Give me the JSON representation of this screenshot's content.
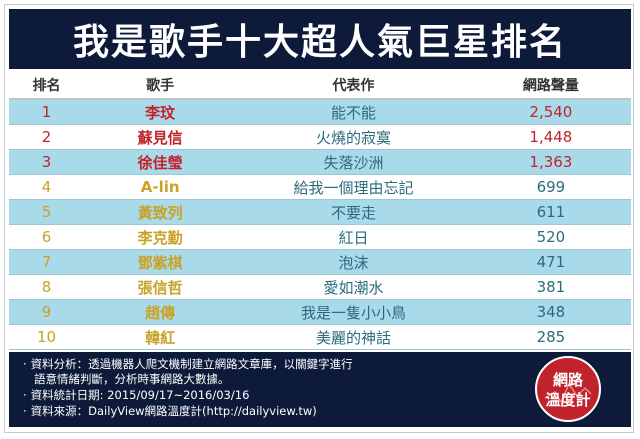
{
  "title": "我是歌手十大超人氣巨星排名",
  "columns": [
    "排名",
    "歌手",
    "代表作",
    "網路聲量"
  ],
  "rows": [
    {
      "rank": "1",
      "singer": "李玟",
      "song": "能不能",
      "volume": "2,540"
    },
    {
      "rank": "2",
      "singer": "蘇見信",
      "song": "火燒的寂寞",
      "volume": "1,448"
    },
    {
      "rank": "3",
      "singer": "徐佳瑩",
      "song": "失落沙洲",
      "volume": "1,363"
    },
    {
      "rank": "4",
      "singer": "A-lin",
      "song": "給我一個理由忘記",
      "volume": "699"
    },
    {
      "rank": "5",
      "singer": "黃致列",
      "song": "不要走",
      "volume": "611"
    },
    {
      "rank": "6",
      "singer": "李克勤",
      "song": "紅日",
      "volume": "520"
    },
    {
      "rank": "7",
      "singer": "鄧紫棋",
      "song": "泡沫",
      "volume": "471"
    },
    {
      "rank": "8",
      "singer": "張信哲",
      "song": "愛如潮水",
      "volume": "381"
    },
    {
      "rank": "9",
      "singer": "趙傳",
      "song": "我是一隻小小鳥",
      "volume": "348"
    },
    {
      "rank": "10",
      "singer": "韓紅",
      "song": "美麗的神話",
      "volume": "285"
    }
  ],
  "notes": [
    "資料分析：透過機器人爬文機制建立網路文章庫，以關鍵字進行",
    "語意情緒判斷，分析時事網路大數據。",
    "資料統計日期: 2015/09/17~2016/03/16",
    "資料來源：DailyView網路溫度計(http://dailyview.tw)"
  ],
  "logo": {
    "line1": "網路",
    "line2": "溫度計"
  },
  "colors": {
    "navy": "#0d1a3a",
    "row_blue": "#a9daea",
    "red": "#c0232b",
    "gold": "#c9a227",
    "teal": "#2b6b7d"
  }
}
